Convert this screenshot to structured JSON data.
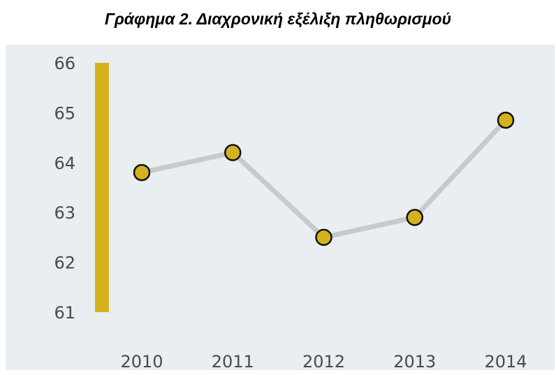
{
  "title": "Γράφημα 2. Διαχρονική εξέλιξη πληθωρισμού",
  "chart_data": {
    "type": "line",
    "title": "Γράφημα 2. Διαχρονική εξέλιξη πληθωρισμού",
    "xlabel": "",
    "ylabel": "",
    "x": [
      "2010",
      "2011",
      "2012",
      "2013",
      "2014"
    ],
    "series": [
      {
        "values": [
          63.8,
          64.2,
          62.5,
          62.9,
          64.85
        ]
      }
    ],
    "ylim": [
      61,
      66
    ],
    "yticks": [
      66,
      65,
      64,
      63,
      62,
      61
    ],
    "grid": false,
    "colors": {
      "line": "#c9c9c9",
      "marker_fill": "#d4b21e",
      "marker_stroke": "#111111",
      "axis_bar": "#d4b21e",
      "background": "#e8eef2"
    }
  }
}
